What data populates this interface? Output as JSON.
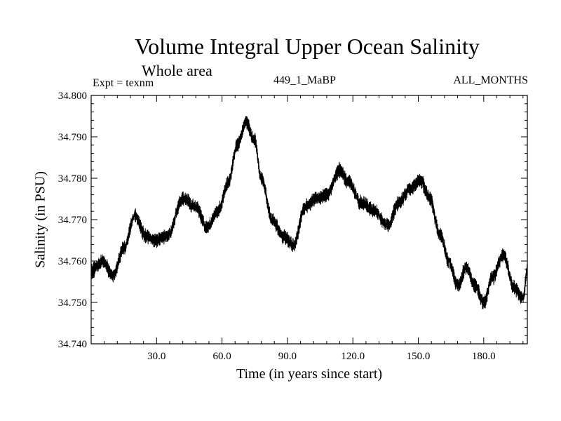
{
  "chart_data": {
    "type": "line",
    "title": "Volume Integral Upper Ocean Salinity",
    "subtitle": "Whole area",
    "experiment": "Expt = texnm",
    "run": "449_1_MaBP",
    "months": "ALL_MONTHS",
    "xlabel": "Time (in years since start)",
    "ylabel": "Salinity (in PSU)",
    "xlim": [
      0,
      200
    ],
    "ylim": [
      34.74,
      34.8
    ],
    "xticks": [
      30,
      60,
      90,
      120,
      150,
      180
    ],
    "xtick_labels": [
      "30.0",
      "60.0",
      "90.0",
      "120.0",
      "150.0",
      "180.0"
    ],
    "yticks": [
      34.74,
      34.75,
      34.76,
      34.77,
      34.78,
      34.79,
      34.8
    ],
    "ytick_labels": [
      "34.740",
      "34.750",
      "34.760",
      "34.770",
      "34.780",
      "34.790",
      "34.800"
    ],
    "series": [
      {
        "name": "Salinity",
        "color": "#000000",
        "noise_amplitude": 0.0016,
        "x": [
          0,
          5,
          10,
          15,
          20,
          25,
          30,
          35,
          42,
          48,
          53,
          58,
          63,
          67,
          71,
          75,
          78,
          83,
          88,
          93,
          98,
          103,
          108,
          114,
          118,
          124,
          130,
          136,
          141,
          146,
          151,
          155,
          160,
          164,
          168,
          172,
          176,
          180,
          184,
          189,
          194,
          198,
          200
        ],
        "values": [
          34.7575,
          34.76,
          34.7565,
          34.763,
          34.771,
          34.766,
          34.765,
          34.766,
          34.775,
          34.773,
          34.768,
          34.772,
          34.779,
          34.788,
          34.7935,
          34.789,
          34.78,
          34.77,
          34.766,
          34.764,
          34.773,
          34.775,
          34.776,
          34.782,
          34.779,
          34.774,
          34.772,
          34.7685,
          34.774,
          34.7775,
          34.7795,
          34.7755,
          34.7665,
          34.76,
          34.754,
          34.7585,
          34.754,
          34.75,
          34.756,
          34.7615,
          34.7535,
          34.751,
          34.758
        ]
      }
    ]
  }
}
